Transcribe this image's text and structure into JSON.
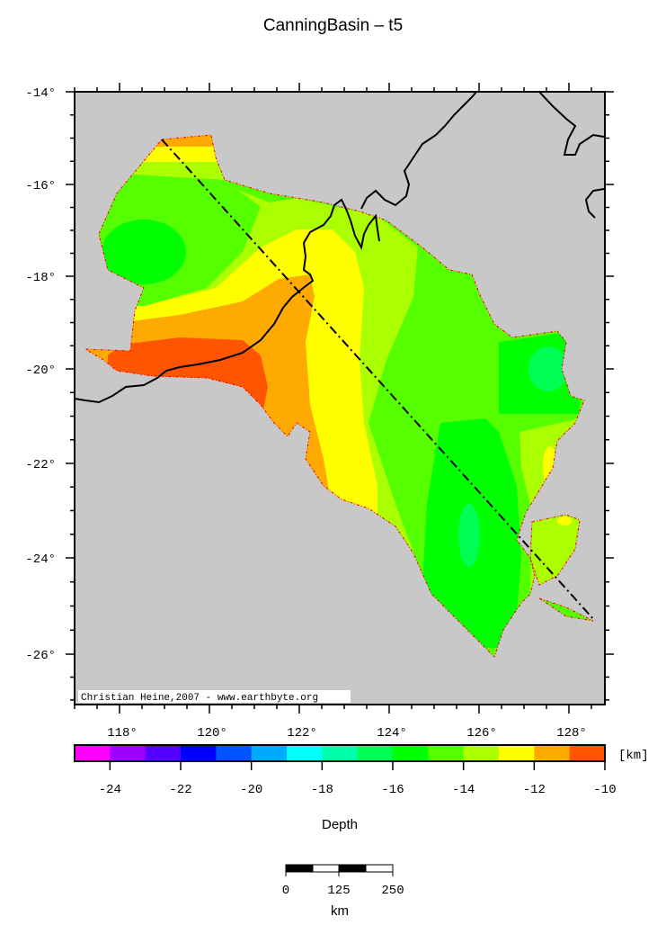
{
  "title": "CanningBasin – t5",
  "map": {
    "lat_ticks": [
      {
        "value": -14,
        "label": "-14°"
      },
      {
        "value": -16,
        "label": "-16°"
      },
      {
        "value": -18,
        "label": "-18°"
      },
      {
        "value": -20,
        "label": "-20°"
      },
      {
        "value": -22,
        "label": "-22°"
      },
      {
        "value": -24,
        "label": "-24°"
      },
      {
        "value": -26,
        "label": "-26°"
      }
    ],
    "lon_ticks": [
      {
        "value": 118,
        "label": "118°"
      },
      {
        "value": 120,
        "label": "120°"
      },
      {
        "value": 122,
        "label": "122°"
      },
      {
        "value": 124,
        "label": "124°"
      },
      {
        "value": 126,
        "label": "126°"
      },
      {
        "value": 128,
        "label": "128°"
      }
    ],
    "lon_range": [
      117,
      128.8
    ],
    "lat_range": [
      -27.1,
      -14
    ],
    "credit": "Christian Heine,2007 - www.earthbyte.org",
    "background_color": "#c8c8c8",
    "outline_color": "#ff0000"
  },
  "colorbar": {
    "range": [
      -25,
      -10
    ],
    "colors": [
      "#ff00ff",
      "#a000ff",
      "#5500ff",
      "#0000ff",
      "#0055ff",
      "#00aaff",
      "#00ffff",
      "#00ffaa",
      "#00ff55",
      "#00ff00",
      "#55ff00",
      "#aaff00",
      "#ffff00",
      "#ffaa00",
      "#ff5500"
    ],
    "ticks": [
      {
        "value": -24,
        "label": "-24"
      },
      {
        "value": -22,
        "label": "-22"
      },
      {
        "value": -20,
        "label": "-20"
      },
      {
        "value": -18,
        "label": "-18"
      },
      {
        "value": -16,
        "label": "-16"
      },
      {
        "value": -14,
        "label": "-14"
      },
      {
        "value": -12,
        "label": "-12"
      },
      {
        "value": -10,
        "label": "-10"
      }
    ],
    "unit": "[km]",
    "label": "Depth"
  },
  "scalebar": {
    "labels": [
      "0",
      "125",
      "250"
    ],
    "unit": "km"
  }
}
